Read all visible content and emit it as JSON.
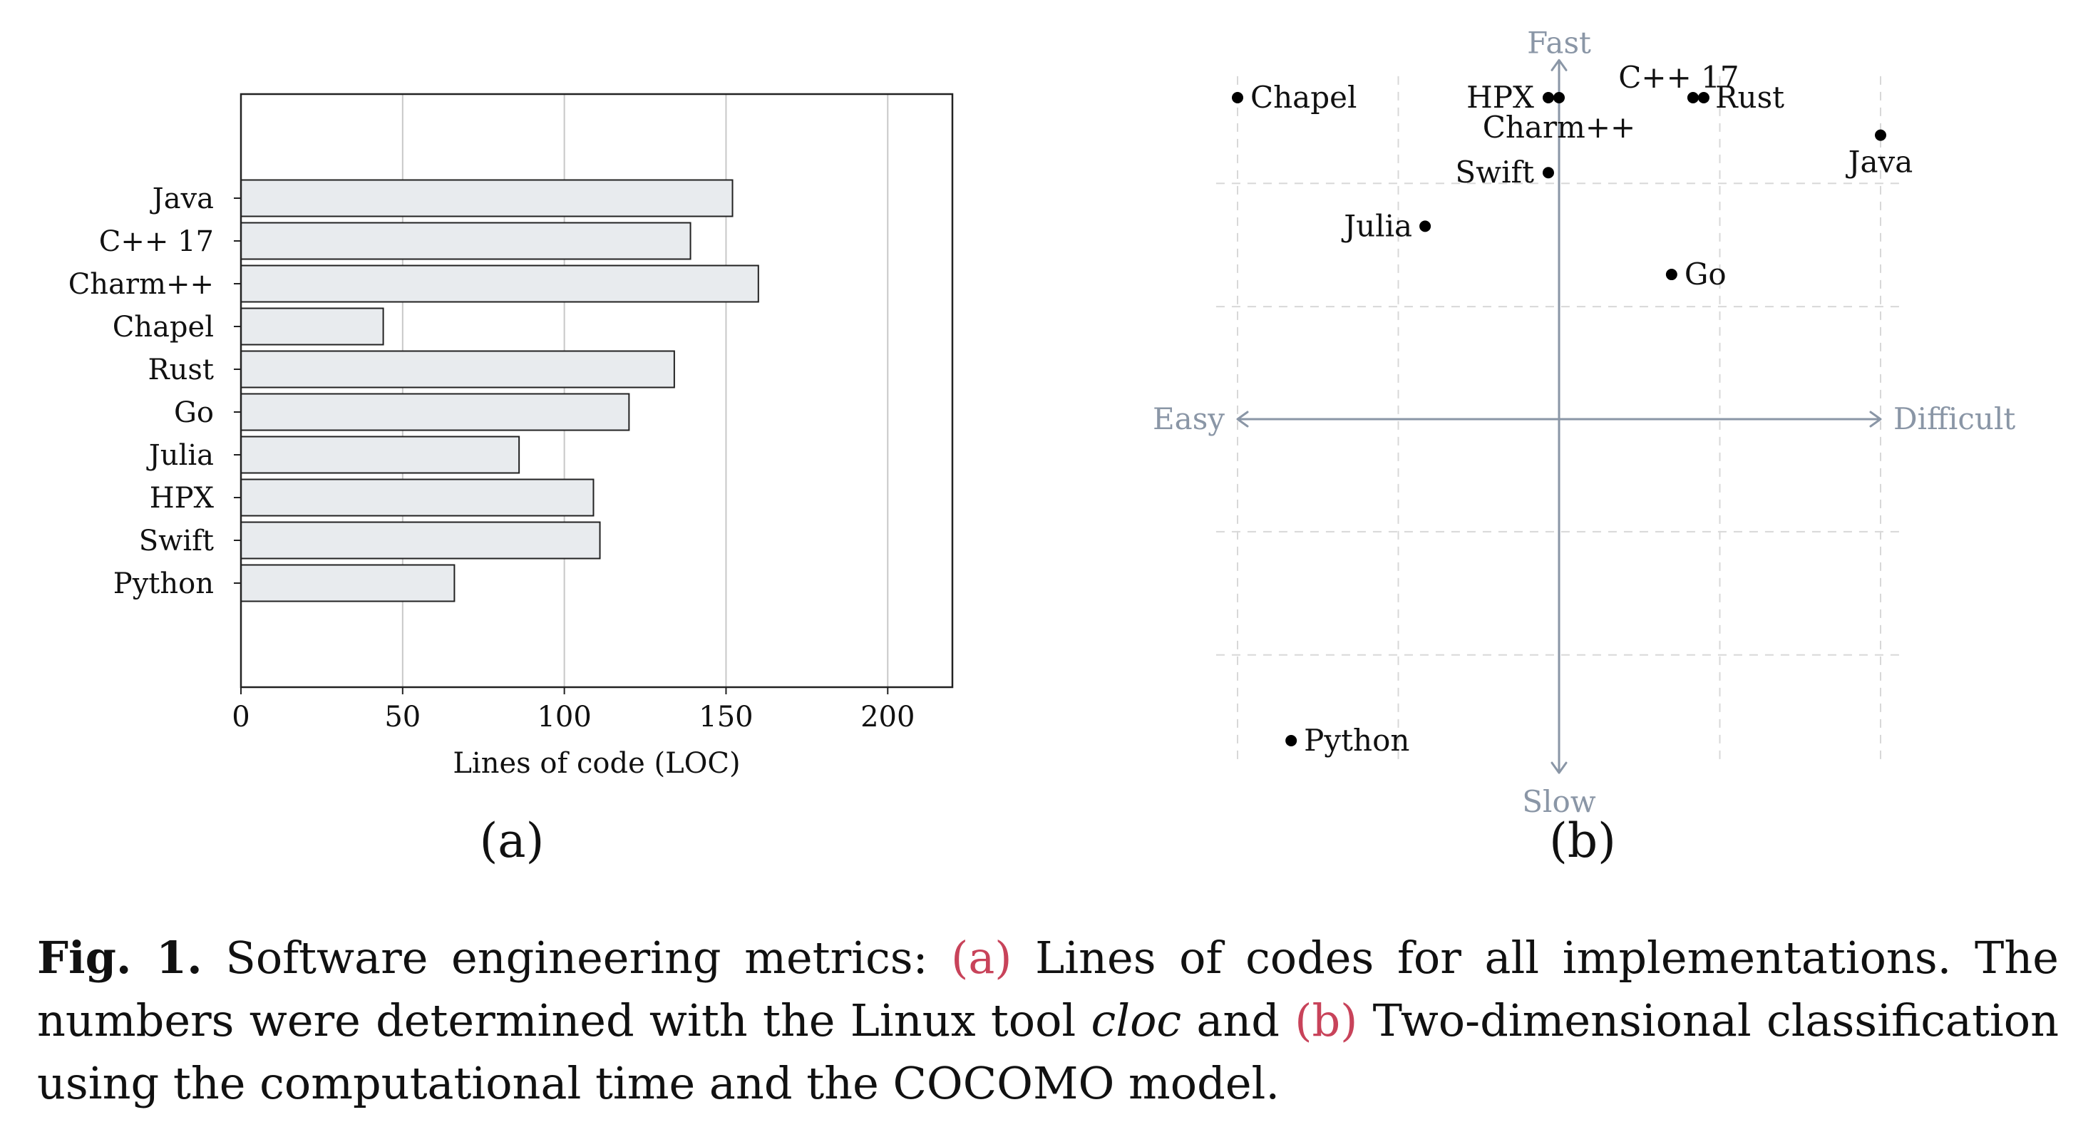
{
  "chart_data": [
    {
      "type": "bar",
      "orientation": "horizontal",
      "panel_label": "(a)",
      "categories": [
        "Java",
        "C++ 17",
        "Charm++",
        "Chapel",
        "Rust",
        "Go",
        "Julia",
        "HPX",
        "Swift",
        "Python"
      ],
      "values": [
        152,
        139,
        160,
        44,
        134,
        120,
        86,
        109,
        111,
        66
      ],
      "xlabel": "Lines of code (LOC)",
      "xlim": [
        0,
        220
      ],
      "xticks": [
        0,
        50,
        100,
        150,
        200
      ],
      "grid": true,
      "colors": {
        "bar_fill": "#e8ebee",
        "bar_stroke": "#222222",
        "grid": "#c8c8c8"
      }
    },
    {
      "type": "scatter",
      "panel_label": "(b)",
      "axis_labels": {
        "top": "Fast",
        "bottom": "Slow",
        "left": "Easy",
        "right": "Difficult"
      },
      "xlim": [
        -3,
        3
      ],
      "ylim": [
        -3,
        3
      ],
      "grid": true,
      "points": [
        {
          "label": "Chapel",
          "x": -3.0,
          "y": 3.0
        },
        {
          "label": "HPX",
          "x": -0.1,
          "y": 3.0
        },
        {
          "label": "Charm++",
          "x": 0.0,
          "y": 3.0
        },
        {
          "label": "C++ 17",
          "x": 1.25,
          "y": 3.0
        },
        {
          "label": "Rust",
          "x": 1.35,
          "y": 3.0
        },
        {
          "label": "Java",
          "x": 3.0,
          "y": 2.65
        },
        {
          "label": "Swift",
          "x": -0.1,
          "y": 2.3
        },
        {
          "label": "Julia",
          "x": -1.25,
          "y": 1.8
        },
        {
          "label": "Go",
          "x": 1.05,
          "y": 1.35
        },
        {
          "label": "Python",
          "x": -2.5,
          "y": -3.0
        }
      ],
      "colors": {
        "axis": "#8a96a6",
        "grid": "#d8d8d8",
        "point": "#000000"
      }
    }
  ],
  "caption": {
    "label": "Fig. 1.",
    "part1": " Software engineering metrics: ",
    "ref_a": "(a)",
    "part2": " Lines of codes for all implementations. The numbers were determined with the Linux tool ",
    "em": "cloc",
    "part3": " and ",
    "ref_b": "(b)",
    "part4": " Two-dimensional classification using the computational time and the COCOMO model."
  }
}
